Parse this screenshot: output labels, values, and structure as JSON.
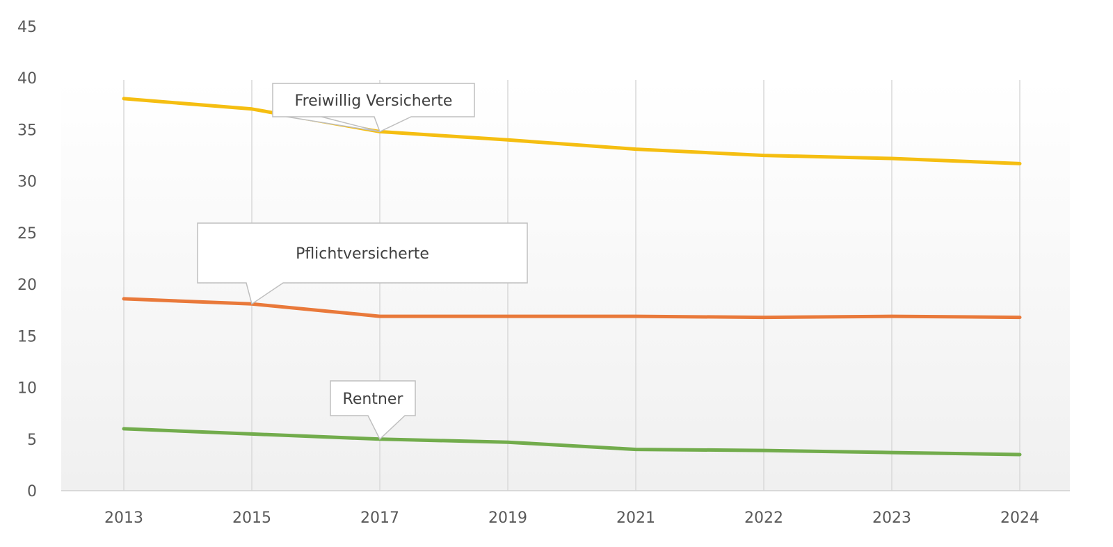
{
  "chart_data": {
    "type": "line",
    "categories": [
      "2013",
      "2015",
      "2017",
      "2019",
      "2021",
      "2022",
      "2023",
      "2024"
    ],
    "ylim": [
      0,
      45
    ],
    "yticks": [
      0,
      5,
      10,
      15,
      20,
      25,
      30,
      35,
      40,
      45
    ],
    "grid": "vertical",
    "series": [
      {
        "name": "Freiwillig Versicherte",
        "color": "#F5BE11",
        "values": [
          38.0,
          37.0,
          34.8,
          34.0,
          33.1,
          32.5,
          32.2,
          31.7
        ]
      },
      {
        "name": "Pflichtversicherte",
        "color": "#E9793A",
        "values": [
          18.6,
          18.1,
          16.9,
          16.9,
          16.9,
          16.8,
          16.9,
          16.8
        ]
      },
      {
        "name": "Rentner",
        "color": "#72AC4C",
        "values": [
          6.0,
          5.5,
          5.0,
          4.7,
          4.0,
          3.9,
          3.7,
          3.5
        ]
      }
    ],
    "annotations": [
      {
        "text": "Freiwillig Versicherte",
        "series": 0,
        "point": 2
      },
      {
        "text": "Pflichtversicherte",
        "series": 1,
        "point": 1
      },
      {
        "text": "Rentner",
        "series": 2,
        "point": 2
      }
    ]
  }
}
